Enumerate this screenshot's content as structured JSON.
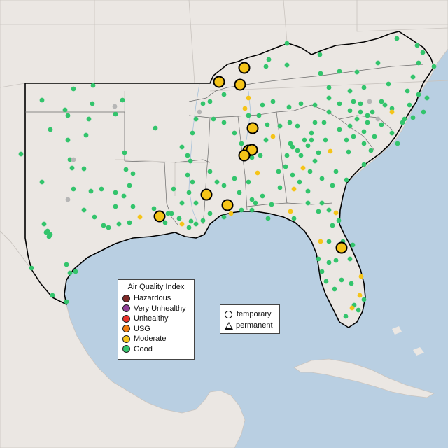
{
  "colors": {
    "water": "#b9cfe2",
    "land": "#ebe7e3",
    "land_border": "#b7b2ad",
    "outline": "#000000",
    "hazardous": "#7e2a28",
    "very_unhealthy": "#8f3f97",
    "unhealthy": "#e8322a",
    "usg": "#f07d11",
    "moderate": "#f5c418",
    "good": "#33c46c",
    "no_data": "#b6b6b6"
  },
  "aqi_legend": {
    "title": "Air Quality Index",
    "items": [
      {
        "label": "Hazardous",
        "color": "#7e2a28"
      },
      {
        "label": "Very Unhealthy",
        "color": "#8f3f97"
      },
      {
        "label": "Unhealthy",
        "color": "#e8322a"
      },
      {
        "label": "USG",
        "color": "#f07d11"
      },
      {
        "label": "Moderate",
        "color": "#f5c418"
      },
      {
        "label": "Good",
        "color": "#33c46c"
      }
    ]
  },
  "monitor_legend": {
    "temporary": "temporary",
    "permanent": "permanent"
  }
}
